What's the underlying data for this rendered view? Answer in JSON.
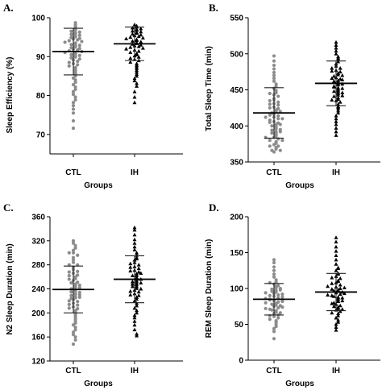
{
  "chart_data": [
    {
      "panel": "A.",
      "type": "scatter",
      "xlabel": "Groups",
      "ylabel": "Sleep Efficiency (%)",
      "categories": [
        "CTL",
        "IH"
      ],
      "ylim": [
        65,
        100
      ],
      "yticks": [
        70,
        80,
        90,
        100
      ],
      "series": [
        {
          "name": "CTL",
          "marker": "circle",
          "color": "#8c8c8c",
          "mean": 91.3,
          "sd": 6.0,
          "values": [
            98.7,
            98.2,
            97.7,
            97.3,
            97.0,
            96.8,
            96.5,
            96.3,
            96.1,
            95.9,
            95.7,
            95.5,
            95.3,
            95.1,
            94.9,
            94.7,
            94.5,
            94.3,
            94.1,
            93.9,
            93.7,
            93.5,
            93.3,
            93.1,
            92.9,
            92.7,
            92.5,
            92.3,
            92.1,
            91.9,
            91.7,
            91.5,
            91.3,
            91.1,
            90.9,
            90.7,
            90.5,
            90.3,
            90.1,
            89.9,
            89.7,
            89.4,
            89.1,
            88.8,
            88.5,
            88.2,
            87.9,
            87.6,
            87.2,
            86.8,
            86.4,
            86.0,
            85.5,
            85.0,
            84.5,
            84.0,
            83.4,
            82.8,
            82.2,
            81.6,
            81.0,
            80.3,
            79.6,
            78.9,
            78.2,
            77.4,
            76.5,
            75.5,
            73.5,
            71.6
          ]
        },
        {
          "name": "IH",
          "marker": "triangle",
          "color": "#000000",
          "mean": 93.3,
          "sd": 4.3,
          "values": [
            98.2,
            97.9,
            97.6,
            97.4,
            97.2,
            97.0,
            96.8,
            96.6,
            96.4,
            96.2,
            96.0,
            95.8,
            95.6,
            95.4,
            95.2,
            95.0,
            94.8,
            94.6,
            94.4,
            94.2,
            94.0,
            93.8,
            93.6,
            93.4,
            93.2,
            93.0,
            92.8,
            92.6,
            92.4,
            92.2,
            92.0,
            91.7,
            91.4,
            91.1,
            90.8,
            90.5,
            90.2,
            89.9,
            89.6,
            89.3,
            89.0,
            88.6,
            88.2,
            87.8,
            87.4,
            87.0,
            86.5,
            86.0,
            85.5,
            85.0,
            84.4,
            83.8,
            83.1,
            82.4,
            81.0,
            79.6,
            78.2
          ]
        }
      ]
    },
    {
      "panel": "B.",
      "type": "scatter",
      "xlabel": "Groups",
      "ylabel": "Total Sleep Time (min)",
      "categories": [
        "CTL",
        "IH"
      ],
      "ylim": [
        350,
        550
      ],
      "yticks": [
        350,
        400,
        450,
        500,
        550
      ],
      "series": [
        {
          "name": "CTL",
          "marker": "circle",
          "color": "#8c8c8c",
          "mean": 418,
          "sd": 35,
          "values": [
            497,
            490,
            484,
            479,
            474,
            470,
            466,
            462,
            458,
            455,
            452,
            449,
            446,
            443,
            441,
            438,
            436,
            433,
            431,
            429,
            426,
            424,
            422,
            420,
            418,
            416,
            414,
            412,
            410,
            408,
            406,
            404,
            402,
            400,
            398,
            396,
            394,
            392,
            390,
            388,
            386,
            384,
            382,
            380,
            378,
            376,
            374,
            372,
            370,
            368,
            366,
            364,
            425,
            415,
            405,
            395,
            430,
            410,
            400,
            390,
            420,
            380,
            445,
            435,
            412,
            402,
            392,
            384,
            372,
            366
          ]
        },
        {
          "name": "IH",
          "marker": "triangle",
          "color": "#000000",
          "mean": 459,
          "sd": 31,
          "values": [
            516,
            512,
            508,
            504,
            500,
            496,
            492,
            489,
            486,
            483,
            480,
            477,
            475,
            473,
            471,
            469,
            467,
            465,
            463,
            461,
            459,
            457,
            455,
            453,
            451,
            449,
            447,
            445,
            443,
            441,
            439,
            437,
            435,
            433,
            430,
            427,
            424,
            421,
            418,
            414,
            410,
            406,
            402,
            397,
            392,
            387,
            462,
            466,
            454,
            448,
            470,
            476,
            442,
            436,
            458,
            464,
            452,
            446,
            426,
            480,
            494
          ]
        }
      ]
    },
    {
      "panel": "C.",
      "type": "scatter",
      "xlabel": "Groups",
      "ylabel": "N2 Sleep Duration (min)",
      "categories": [
        "CTL",
        "IH"
      ],
      "ylim": [
        120,
        360
      ],
      "yticks": [
        120,
        160,
        200,
        240,
        280,
        320,
        360
      ],
      "series": [
        {
          "name": "CTL",
          "marker": "circle",
          "color": "#8c8c8c",
          "mean": 239,
          "sd": 39,
          "values": [
            320,
            316,
            312,
            308,
            304,
            300,
            296,
            292,
            288,
            284,
            280,
            276,
            272,
            269,
            266,
            263,
            260,
            257,
            254,
            251,
            248,
            245,
            243,
            241,
            239,
            237,
            235,
            233,
            231,
            229,
            227,
            225,
            222,
            219,
            216,
            213,
            210,
            207,
            204,
            201,
            198,
            195,
            192,
            189,
            186,
            183,
            180,
            176,
            172,
            168,
            164,
            160,
            155,
            148,
            250,
            246,
            240,
            234,
            230,
            224,
            262,
            268,
            214,
            208,
            242,
            256,
            226,
            220,
            280,
            300
          ]
        },
        {
          "name": "IH",
          "marker": "triangle",
          "color": "#000000",
          "mean": 256,
          "sd": 39,
          "values": [
            342,
            338,
            330,
            322,
            316,
            310,
            305,
            300,
            296,
            292,
            288,
            284,
            280,
            277,
            274,
            271,
            268,
            265,
            262,
            259,
            256,
            253,
            250,
            247,
            244,
            241,
            238,
            235,
            232,
            229,
            226,
            223,
            220,
            216,
            212,
            208,
            204,
            200,
            196,
            192,
            186,
            180,
            172,
            165,
            162,
            258,
            262,
            266,
            252,
            248,
            270,
            244,
            240,
            276,
            236,
            282,
            230,
            290,
            256,
            250
          ]
        }
      ]
    },
    {
      "panel": "D.",
      "type": "scatter",
      "xlabel": "Groups",
      "ylabel": "REM Sleep Duration  (min)",
      "categories": [
        "CTL",
        "IH"
      ],
      "ylim": [
        0,
        200
      ],
      "yticks": [
        0,
        50,
        100,
        150,
        200
      ],
      "series": [
        {
          "name": "CTL",
          "marker": "circle",
          "color": "#8c8c8c",
          "mean": 85,
          "sd": 22,
          "values": [
            140,
            136,
            130,
            125,
            120,
            116,
            112,
            109,
            106,
            103,
            101,
            99,
            97,
            95,
            93,
            91,
            89,
            87,
            85,
            83,
            81,
            79,
            77,
            75,
            73,
            71,
            69,
            67,
            65,
            63,
            61,
            59,
            57,
            55,
            53,
            50,
            47,
            44,
            40,
            30,
            88,
            86,
            84,
            82,
            90,
            92,
            80,
            78,
            94,
            96,
            76,
            74,
            98,
            72,
            100,
            70,
            104,
            66,
            108,
            62
          ]
        },
        {
          "name": "IH",
          "marker": "triangle",
          "color": "#000000",
          "mean": 95,
          "sd": 26,
          "values": [
            171,
            165,
            158,
            152,
            146,
            140,
            134,
            129,
            125,
            121,
            117,
            114,
            111,
            108,
            105,
            102,
            100,
            98,
            96,
            94,
            92,
            90,
            88,
            86,
            84,
            82,
            80,
            78,
            76,
            74,
            72,
            70,
            68,
            65,
            62,
            59,
            56,
            53,
            50,
            46,
            42,
            97,
            93,
            99,
            91,
            101,
            89,
            103,
            87,
            107,
            83,
            110,
            79,
            115,
            75,
            120,
            71,
            128,
            66,
            95
          ]
        }
      ]
    }
  ]
}
